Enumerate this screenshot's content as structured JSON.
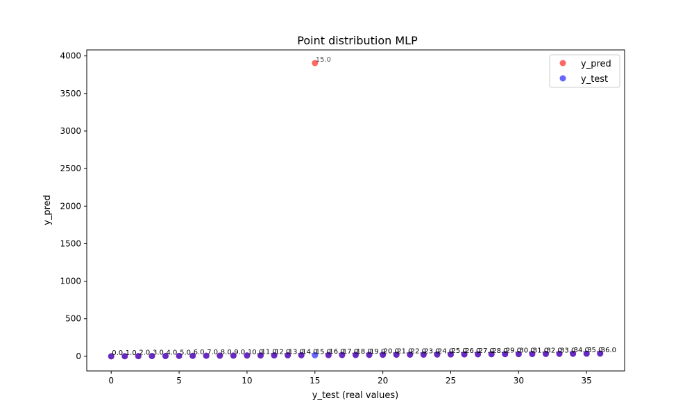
{
  "chart_data": {
    "type": "scatter",
    "title": "Point distribution MLP",
    "xlabel": "y_test (real values)",
    "ylabel": "y_pred",
    "xlim": [
      -1.8,
      37.8
    ],
    "ylim": [
      -195,
      4080
    ],
    "xticks": [
      0,
      5,
      10,
      15,
      20,
      25,
      30,
      35
    ],
    "yticks": [
      0,
      500,
      1000,
      1500,
      2000,
      2500,
      3000,
      3500,
      4000
    ],
    "grid": false,
    "legend_position": "top-right",
    "series": [
      {
        "name": "y_pred",
        "color": "#ff0000",
        "alpha": 0.6,
        "x": [
          0,
          1,
          2,
          3,
          4,
          5,
          6,
          7,
          8,
          9,
          10,
          11,
          12,
          13,
          14,
          15,
          16,
          17,
          18,
          19,
          20,
          21,
          22,
          23,
          24,
          25,
          26,
          27,
          28,
          29,
          30,
          31,
          32,
          33,
          34,
          35,
          36
        ],
        "y": [
          0,
          1,
          2,
          3,
          4,
          5,
          6,
          7,
          8,
          9,
          10,
          11,
          12,
          13,
          14,
          3905,
          16,
          17,
          18,
          19,
          20,
          21,
          22,
          23,
          24,
          25,
          26,
          27,
          28,
          29,
          30,
          31,
          32,
          33,
          34,
          35,
          36
        ]
      },
      {
        "name": "y_test",
        "color": "#0000ff",
        "alpha": 0.6,
        "x": [
          0,
          1,
          2,
          3,
          4,
          5,
          6,
          7,
          8,
          9,
          10,
          11,
          12,
          13,
          14,
          15,
          16,
          17,
          18,
          19,
          20,
          21,
          22,
          23,
          24,
          25,
          26,
          27,
          28,
          29,
          30,
          31,
          32,
          33,
          34,
          35,
          36
        ],
        "y": [
          0,
          1,
          2,
          3,
          4,
          5,
          6,
          7,
          8,
          9,
          10,
          11,
          12,
          13,
          14,
          15,
          16,
          17,
          18,
          19,
          20,
          21,
          22,
          23,
          24,
          25,
          26,
          27,
          28,
          29,
          30,
          31,
          32,
          33,
          34,
          35,
          36
        ]
      }
    ],
    "annotations_pred": [
      {
        "text": "15.0",
        "x": 15,
        "y": 3905
      }
    ],
    "annotations_test": [
      {
        "text": "0.0",
        "x": 0
      },
      {
        "text": "1.0",
        "x": 1
      },
      {
        "text": "2.0",
        "x": 2
      },
      {
        "text": "3.0",
        "x": 3
      },
      {
        "text": "4.0",
        "x": 4
      },
      {
        "text": "5.0",
        "x": 5
      },
      {
        "text": "6.0",
        "x": 6
      },
      {
        "text": "7.0",
        "x": 7
      },
      {
        "text": "8.0",
        "x": 8
      },
      {
        "text": "9.0",
        "x": 9
      },
      {
        "text": "10.0",
        "x": 10
      },
      {
        "text": "11.0",
        "x": 11
      },
      {
        "text": "12.0",
        "x": 12
      },
      {
        "text": "13.0",
        "x": 13
      },
      {
        "text": "14.0",
        "x": 14
      },
      {
        "text": "15.0",
        "x": 15
      },
      {
        "text": "16.0",
        "x": 16
      },
      {
        "text": "17.0",
        "x": 17
      },
      {
        "text": "18.0",
        "x": 18
      },
      {
        "text": "19.0",
        "x": 19
      },
      {
        "text": "20.0",
        "x": 20
      },
      {
        "text": "21.0",
        "x": 21
      },
      {
        "text": "22.0",
        "x": 22
      },
      {
        "text": "23.0",
        "x": 23
      },
      {
        "text": "24.0",
        "x": 24
      },
      {
        "text": "25.0",
        "x": 25
      },
      {
        "text": "26.0",
        "x": 26
      },
      {
        "text": "27.0",
        "x": 27
      },
      {
        "text": "28.0",
        "x": 28
      },
      {
        "text": "29.0",
        "x": 29
      },
      {
        "text": "30.0",
        "x": 30
      },
      {
        "text": "31.0",
        "x": 31
      },
      {
        "text": "32.0",
        "x": 32
      },
      {
        "text": "33.0",
        "x": 33
      },
      {
        "text": "34.0",
        "x": 34
      },
      {
        "text": "35.0",
        "x": 35
      },
      {
        "text": "36.0",
        "x": 36
      }
    ],
    "annotation_test_color": "#800080",
    "annotation_pred_color": "#ff0000"
  }
}
